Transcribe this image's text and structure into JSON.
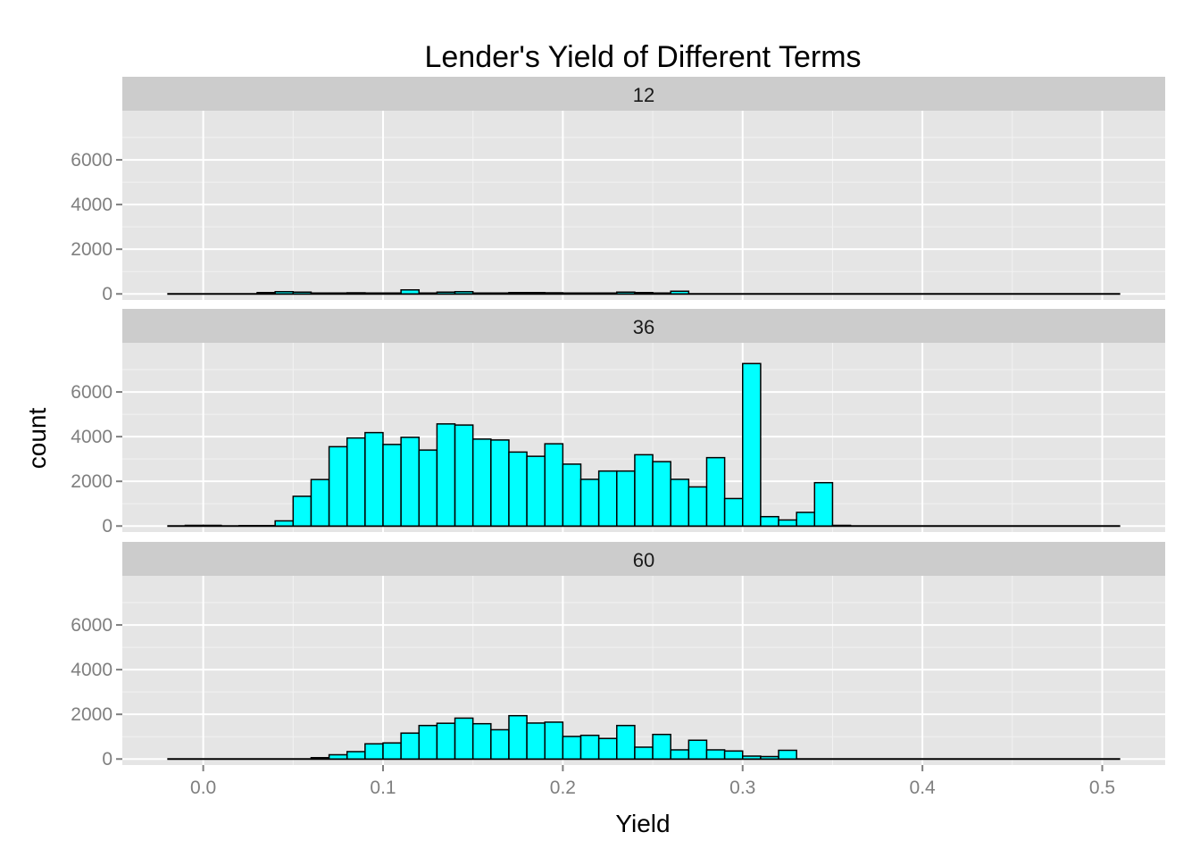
{
  "chart_data": {
    "type": "bar",
    "title": "Lender's Yield of Different Terms",
    "xlabel": "Yield",
    "ylabel": "count",
    "xlim": [
      -0.045,
      0.535
    ],
    "ylim": [
      -270,
      8200
    ],
    "x_ticks": [
      0.0,
      0.1,
      0.2,
      0.3,
      0.4,
      0.5
    ],
    "x_tick_labels": [
      "0.0",
      "0.1",
      "0.2",
      "0.3",
      "0.4",
      "0.5"
    ],
    "y_ticks": [
      0,
      2000,
      4000,
      6000
    ],
    "y_tick_labels": [
      "0",
      "2000",
      "4000",
      "6000"
    ],
    "grid": true,
    "binwidth": 0.01,
    "bin_range": [
      -0.02,
      0.51
    ],
    "panels": [
      {
        "label": "12",
        "bins": [
          {
            "x0": 0.03,
            "x1": 0.04,
            "count": 60
          },
          {
            "x0": 0.04,
            "x1": 0.05,
            "count": 100
          },
          {
            "x0": 0.05,
            "x1": 0.06,
            "count": 80
          },
          {
            "x0": 0.06,
            "x1": 0.07,
            "count": 40
          },
          {
            "x0": 0.07,
            "x1": 0.08,
            "count": 40
          },
          {
            "x0": 0.08,
            "x1": 0.09,
            "count": 50
          },
          {
            "x0": 0.09,
            "x1": 0.1,
            "count": 40
          },
          {
            "x0": 0.1,
            "x1": 0.11,
            "count": 40
          },
          {
            "x0": 0.11,
            "x1": 0.12,
            "count": 180
          },
          {
            "x0": 0.12,
            "x1": 0.13,
            "count": 40
          },
          {
            "x0": 0.13,
            "x1": 0.14,
            "count": 80
          },
          {
            "x0": 0.14,
            "x1": 0.15,
            "count": 100
          },
          {
            "x0": 0.15,
            "x1": 0.16,
            "count": 40
          },
          {
            "x0": 0.16,
            "x1": 0.17,
            "count": 40
          },
          {
            "x0": 0.17,
            "x1": 0.18,
            "count": 60
          },
          {
            "x0": 0.18,
            "x1": 0.19,
            "count": 60
          },
          {
            "x0": 0.19,
            "x1": 0.2,
            "count": 50
          },
          {
            "x0": 0.2,
            "x1": 0.21,
            "count": 40
          },
          {
            "x0": 0.21,
            "x1": 0.22,
            "count": 40
          },
          {
            "x0": 0.22,
            "x1": 0.23,
            "count": 40
          },
          {
            "x0": 0.23,
            "x1": 0.24,
            "count": 80
          },
          {
            "x0": 0.24,
            "x1": 0.25,
            "count": 60
          },
          {
            "x0": 0.25,
            "x1": 0.26,
            "count": 40
          },
          {
            "x0": 0.26,
            "x1": 0.27,
            "count": 120
          }
        ]
      },
      {
        "label": "36",
        "bins": [
          {
            "x0": -0.01,
            "x1": 0.0,
            "count": 30
          },
          {
            "x0": 0.0,
            "x1": 0.01,
            "count": 30
          },
          {
            "x0": 0.02,
            "x1": 0.03,
            "count": 20
          },
          {
            "x0": 0.03,
            "x1": 0.04,
            "count": 20
          },
          {
            "x0": 0.04,
            "x1": 0.05,
            "count": 230
          },
          {
            "x0": 0.05,
            "x1": 0.06,
            "count": 1330
          },
          {
            "x0": 0.06,
            "x1": 0.07,
            "count": 2080
          },
          {
            "x0": 0.07,
            "x1": 0.08,
            "count": 3550
          },
          {
            "x0": 0.08,
            "x1": 0.09,
            "count": 3940
          },
          {
            "x0": 0.09,
            "x1": 0.1,
            "count": 4180
          },
          {
            "x0": 0.1,
            "x1": 0.11,
            "count": 3650
          },
          {
            "x0": 0.11,
            "x1": 0.12,
            "count": 3970
          },
          {
            "x0": 0.12,
            "x1": 0.13,
            "count": 3400
          },
          {
            "x0": 0.13,
            "x1": 0.14,
            "count": 4570
          },
          {
            "x0": 0.14,
            "x1": 0.15,
            "count": 4520
          },
          {
            "x0": 0.15,
            "x1": 0.16,
            "count": 3890
          },
          {
            "x0": 0.16,
            "x1": 0.17,
            "count": 3850
          },
          {
            "x0": 0.17,
            "x1": 0.18,
            "count": 3310
          },
          {
            "x0": 0.18,
            "x1": 0.19,
            "count": 3120
          },
          {
            "x0": 0.19,
            "x1": 0.2,
            "count": 3680
          },
          {
            "x0": 0.2,
            "x1": 0.21,
            "count": 2770
          },
          {
            "x0": 0.21,
            "x1": 0.22,
            "count": 2090
          },
          {
            "x0": 0.22,
            "x1": 0.23,
            "count": 2460
          },
          {
            "x0": 0.23,
            "x1": 0.24,
            "count": 2460
          },
          {
            "x0": 0.24,
            "x1": 0.25,
            "count": 3190
          },
          {
            "x0": 0.25,
            "x1": 0.26,
            "count": 2880
          },
          {
            "x0": 0.26,
            "x1": 0.27,
            "count": 2090
          },
          {
            "x0": 0.27,
            "x1": 0.28,
            "count": 1750
          },
          {
            "x0": 0.28,
            "x1": 0.29,
            "count": 3060
          },
          {
            "x0": 0.29,
            "x1": 0.3,
            "count": 1230
          },
          {
            "x0": 0.3,
            "x1": 0.31,
            "count": 7270
          },
          {
            "x0": 0.31,
            "x1": 0.32,
            "count": 420
          },
          {
            "x0": 0.32,
            "x1": 0.33,
            "count": 270
          },
          {
            "x0": 0.33,
            "x1": 0.34,
            "count": 610
          },
          {
            "x0": 0.34,
            "x1": 0.35,
            "count": 1940
          },
          {
            "x0": 0.35,
            "x1": 0.36,
            "count": 30
          }
        ]
      },
      {
        "label": "60",
        "bins": [
          {
            "x0": 0.06,
            "x1": 0.07,
            "count": 60
          },
          {
            "x0": 0.07,
            "x1": 0.08,
            "count": 190
          },
          {
            "x0": 0.08,
            "x1": 0.09,
            "count": 330
          },
          {
            "x0": 0.09,
            "x1": 0.1,
            "count": 680
          },
          {
            "x0": 0.1,
            "x1": 0.11,
            "count": 720
          },
          {
            "x0": 0.11,
            "x1": 0.12,
            "count": 1160
          },
          {
            "x0": 0.12,
            "x1": 0.13,
            "count": 1500
          },
          {
            "x0": 0.13,
            "x1": 0.14,
            "count": 1600
          },
          {
            "x0": 0.14,
            "x1": 0.15,
            "count": 1830
          },
          {
            "x0": 0.15,
            "x1": 0.16,
            "count": 1580
          },
          {
            "x0": 0.16,
            "x1": 0.17,
            "count": 1310
          },
          {
            "x0": 0.17,
            "x1": 0.18,
            "count": 1940
          },
          {
            "x0": 0.18,
            "x1": 0.19,
            "count": 1610
          },
          {
            "x0": 0.19,
            "x1": 0.2,
            "count": 1650
          },
          {
            "x0": 0.2,
            "x1": 0.21,
            "count": 1010
          },
          {
            "x0": 0.21,
            "x1": 0.22,
            "count": 1060
          },
          {
            "x0": 0.22,
            "x1": 0.23,
            "count": 920
          },
          {
            "x0": 0.23,
            "x1": 0.24,
            "count": 1500
          },
          {
            "x0": 0.24,
            "x1": 0.25,
            "count": 530
          },
          {
            "x0": 0.25,
            "x1": 0.26,
            "count": 1100
          },
          {
            "x0": 0.26,
            "x1": 0.27,
            "count": 410
          },
          {
            "x0": 0.27,
            "x1": 0.28,
            "count": 840
          },
          {
            "x0": 0.28,
            "x1": 0.29,
            "count": 410
          },
          {
            "x0": 0.29,
            "x1": 0.3,
            "count": 360
          },
          {
            "x0": 0.3,
            "x1": 0.31,
            "count": 130
          },
          {
            "x0": 0.31,
            "x1": 0.32,
            "count": 110
          },
          {
            "x0": 0.32,
            "x1": 0.33,
            "count": 390
          }
        ]
      }
    ],
    "colors": {
      "bar_fill": "#00ffff",
      "bar_outline": "#000000",
      "panel_background": "#e5e5e5",
      "strip_background": "#cccccc",
      "grid": "#ffffff"
    }
  }
}
